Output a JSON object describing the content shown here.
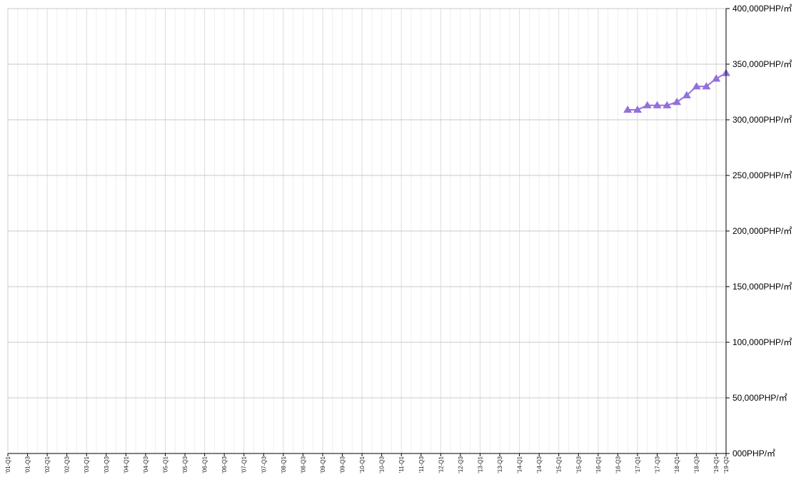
{
  "chart_data": {
    "type": "line",
    "title": "",
    "xlabel": "",
    "ylabel": "",
    "unit": "PHP/㎡",
    "ylim": [
      0,
      400000
    ],
    "y_ticks": [
      0,
      50000,
      100000,
      150000,
      200000,
      250000,
      300000,
      350000,
      400000
    ],
    "y_tick_labels": [
      "000PHP/㎡",
      "50,000PHP/㎡",
      "100,000PHP/㎡",
      "150,000PHP/㎡",
      "200,000PHP/㎡",
      "250,000PHP/㎡",
      "300,000PHP/㎡",
      "350,000PHP/㎡",
      "400,000PHP/㎡"
    ],
    "x_tick_labels": [
      "'01-Q1",
      "'01-Q3",
      "'02-Q1",
      "'02-Q3",
      "'03-Q1",
      "'03-Q3",
      "'04-Q1",
      "'04-Q3",
      "'05-Q1",
      "'05-Q3",
      "'06-Q1",
      "'06-Q3",
      "'07-Q1",
      "'07-Q3",
      "'08-Q1",
      "'08-Q3",
      "'09-Q1",
      "'09-Q3",
      "'10-Q1",
      "'10-Q3",
      "'11-Q1",
      "'11-Q3",
      "'12-Q1",
      "'12-Q3",
      "'13-Q1",
      "'13-Q3",
      "'14-Q1",
      "'14-Q3",
      "'15-Q1",
      "'15-Q3",
      "'16-Q1",
      "'16-Q3",
      "'17-Q1",
      "'17-Q3",
      "'18-Q1",
      "'18-Q3",
      "'19-Q1",
      "'19-Q2"
    ],
    "grid": true,
    "legend": "none",
    "series": [
      {
        "color": "#9370DB",
        "marker": "triangle",
        "x": [
          "'16-Q4",
          "'17-Q1",
          "'17-Q2",
          "'17-Q3",
          "'17-Q4",
          "'18-Q1",
          "'18-Q2",
          "'18-Q3",
          "'18-Q4",
          "'19-Q1",
          "'19-Q2"
        ],
        "values": [
          309000,
          309000,
          313000,
          313000,
          313000,
          316000,
          322000,
          330000,
          330000,
          337000,
          342000
        ]
      }
    ]
  }
}
